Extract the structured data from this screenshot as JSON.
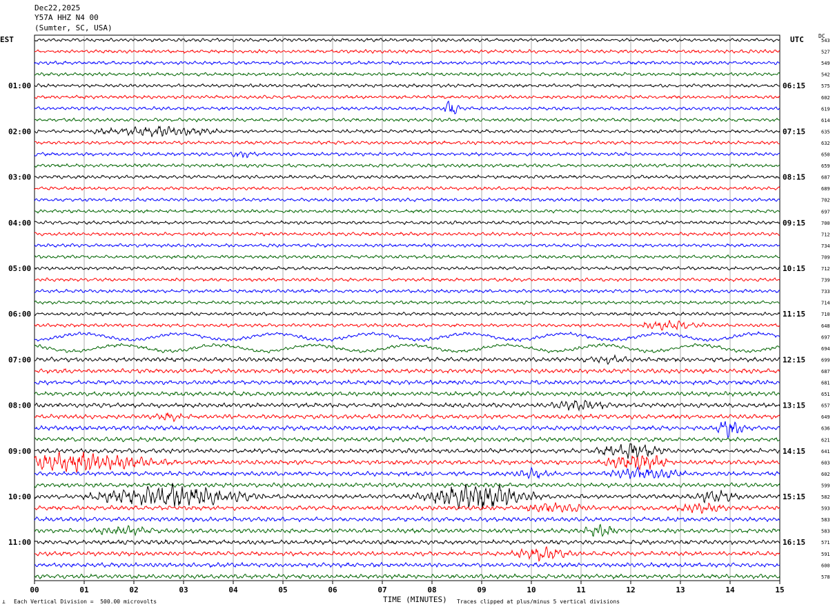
{
  "header": {
    "date": "Dec22,2025",
    "station": "Y57A HHZ N4 00",
    "location": "(Sumter, SC, USA)"
  },
  "axes": {
    "left_tz": "EST",
    "right_tz": "UTC",
    "dc_label": "DC",
    "xlabel": "TIME (MINUTES)"
  },
  "footer": {
    "scale_text": "Each Vertical Division =  500.00 microvolts",
    "clip_text": "Traces clipped at plus/minus 5 vertical divisions"
  },
  "colors": {
    "trace_cycle": [
      "#000000",
      "#ff0000",
      "#0000ff",
      "#006400"
    ],
    "grid": "#999999"
  },
  "chart_data": {
    "type": "line",
    "x_ticks": [
      "00",
      "01",
      "02",
      "03",
      "04",
      "05",
      "06",
      "07",
      "08",
      "09",
      "10",
      "11",
      "12",
      "13",
      "14",
      "15"
    ],
    "xlim": [
      0,
      15
    ],
    "est_labels": [
      "01:00",
      "02:00",
      "03:00",
      "04:00",
      "05:00",
      "06:00",
      "07:00",
      "08:00",
      "09:00",
      "10:00",
      "11:00"
    ],
    "utc_labels": [
      "06:15",
      "07:15",
      "08:15",
      "09:15",
      "10:15",
      "11:15",
      "12:15",
      "13:15",
      "14:15",
      "15:15",
      "16:15"
    ],
    "dc_values": [
      543,
      527,
      549,
      542,
      575,
      602,
      619,
      614,
      635,
      632,
      650,
      659,
      687,
      689,
      702,
      697,
      700,
      712,
      734,
      709,
      712,
      739,
      733,
      714,
      710,
      648,
      697,
      694,
      699,
      687,
      681,
      651,
      657,
      649,
      636,
      621,
      641,
      603,
      602,
      599,
      582,
      593,
      583,
      583,
      571,
      591,
      600,
      578
    ],
    "events": [
      {
        "row": 6,
        "minute": 8.4,
        "width": 0.2,
        "amp": 4.0
      },
      {
        "row": 8,
        "minute": 2.5,
        "width": 1.5,
        "amp": 1.8
      },
      {
        "row": 10,
        "minute": 4.2,
        "width": 0.3,
        "amp": 1.2
      },
      {
        "row": 25,
        "minute": 12.8,
        "width": 0.8,
        "amp": 1.6
      },
      {
        "row": 28,
        "minute": 11.5,
        "width": 0.6,
        "amp": 1.2
      },
      {
        "row": 32,
        "minute": 11.0,
        "width": 0.7,
        "amp": 1.8
      },
      {
        "row": 33,
        "minute": 2.7,
        "width": 0.3,
        "amp": 1.5
      },
      {
        "row": 34,
        "minute": 14.0,
        "width": 0.3,
        "amp": 4.5
      },
      {
        "row": 36,
        "minute": 12.0,
        "width": 0.8,
        "amp": 2.8
      },
      {
        "row": 37,
        "minute": 0.9,
        "width": 2.0,
        "amp": 3.5
      },
      {
        "row": 37,
        "minute": 12.1,
        "width": 0.8,
        "amp": 3.5
      },
      {
        "row": 38,
        "minute": 12.3,
        "width": 1.0,
        "amp": 2.0
      },
      {
        "row": 38,
        "minute": 10.0,
        "width": 0.4,
        "amp": 1.5
      },
      {
        "row": 40,
        "minute": 2.8,
        "width": 2.0,
        "amp": 4.2
      },
      {
        "row": 40,
        "minute": 8.9,
        "width": 1.4,
        "amp": 5.0
      },
      {
        "row": 40,
        "minute": 13.7,
        "width": 0.6,
        "amp": 2.0
      },
      {
        "row": 41,
        "minute": 10.5,
        "width": 0.8,
        "amp": 1.6
      },
      {
        "row": 41,
        "minute": 13.4,
        "width": 0.6,
        "amp": 1.5
      },
      {
        "row": 43,
        "minute": 1.8,
        "width": 0.8,
        "amp": 1.5
      },
      {
        "row": 43,
        "minute": 11.4,
        "width": 0.4,
        "amp": 2.0
      },
      {
        "row": 45,
        "minute": 10.2,
        "width": 0.7,
        "amp": 2.4
      }
    ],
    "swell_rows": [
      26,
      27
    ]
  }
}
